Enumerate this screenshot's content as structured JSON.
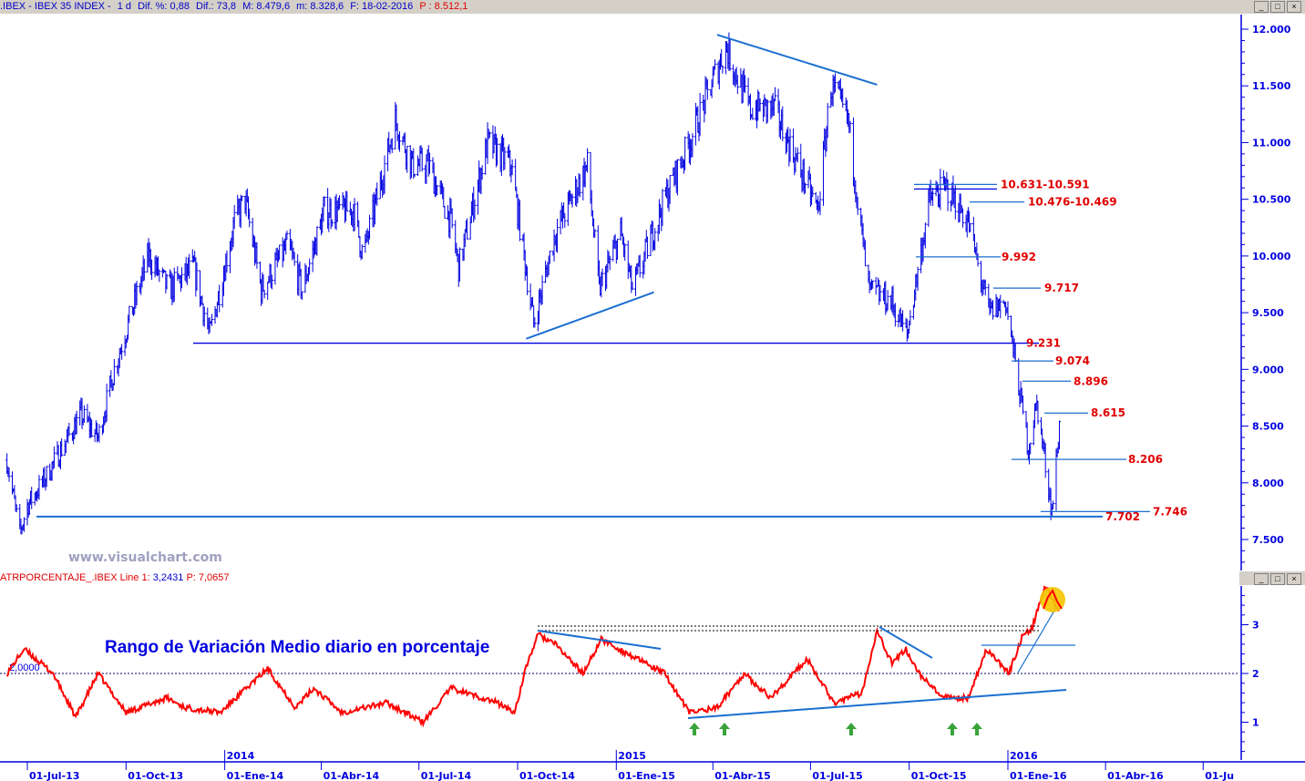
{
  "header": {
    "symbol": ".IBEX - IBEX 35 INDEX -",
    "period": "1 d",
    "dif_pct": "Dif. %: 0,88",
    "dif": "Dif.: 73,8",
    "max": "M: 8.479,6",
    "min": "m: 8.328,6",
    "date": "F: 18-02-2016",
    "price": "P : 8.512,1"
  },
  "window_buttons": {
    "minimize": "_",
    "maximize": "□",
    "close": "×"
  },
  "indicator_header": {
    "name": "ATRPORCENTAJE_.IBEX Line 1:",
    "line1_value": "3,2431",
    "price": "P: 7,0657"
  },
  "watermark": "www.visualchart.com",
  "indicator_title": "Rango de Variación Medio diario en porcentaje",
  "colors": {
    "price_bars": "#0000e0",
    "indicator_line": "#ff0000",
    "trendlines": "#1a6fd0",
    "level_labels": "#e00000",
    "axis": "#0000e0",
    "highlight_circle": "#f5c400",
    "arrows": "#3aa33a"
  },
  "chart_data": [
    {
      "type": "ohlc-bar",
      "title": ".IBEX - IBEX 35 INDEX - 1 d",
      "y_axis_position": "right",
      "ylim": [
        7250,
        12100
      ],
      "yticks": [
        "12.000",
        "11.500",
        "11.000",
        "10.500",
        "10.000",
        "9.500",
        "9.000",
        "8.500",
        "8.000",
        "7.500"
      ],
      "ytick_values": [
        12000,
        11500,
        11000,
        10500,
        10000,
        9500,
        9000,
        8500,
        8000,
        7500
      ],
      "approx_close_path": [
        [
          "2013-06-12",
          8200
        ],
        [
          "2013-06-24",
          7550
        ],
        [
          "2013-07-01",
          7800
        ],
        [
          "2013-07-15",
          8000
        ],
        [
          "2013-08-20",
          8600
        ],
        [
          "2013-09-05",
          8400
        ],
        [
          "2013-09-20",
          9000
        ],
        [
          "2013-10-22",
          10000
        ],
        [
          "2013-11-10",
          9700
        ],
        [
          "2013-12-03",
          9900
        ],
        [
          "2013-12-18",
          9300
        ],
        [
          "2014-01-10",
          10300
        ],
        [
          "2014-01-20",
          10500
        ],
        [
          "2014-02-04",
          9700
        ],
        [
          "2014-03-01",
          10100
        ],
        [
          "2014-03-14",
          9700
        ],
        [
          "2014-04-04",
          10400
        ],
        [
          "2014-05-01",
          10400
        ],
        [
          "2014-05-10",
          10000
        ],
        [
          "2014-06-09",
          11200
        ],
        [
          "2014-06-25",
          10800
        ],
        [
          "2014-07-10",
          10800
        ],
        [
          "2014-07-31",
          10300
        ],
        [
          "2014-08-07",
          9900
        ],
        [
          "2014-09-03",
          11000
        ],
        [
          "2014-09-25",
          10800
        ],
        [
          "2014-10-16",
          9400
        ],
        [
          "2014-11-05",
          10200
        ],
        [
          "2014-12-05",
          10800
        ],
        [
          "2014-12-16",
          9700
        ],
        [
          "2015-01-05",
          10200
        ],
        [
          "2015-01-16",
          9700
        ],
        [
          "2015-02-15",
          10500
        ],
        [
          "2015-03-10",
          11000
        ],
        [
          "2015-04-13",
          11850
        ],
        [
          "2015-05-05",
          11300
        ],
        [
          "2015-05-28",
          11300
        ],
        [
          "2015-06-15",
          10900
        ],
        [
          "2015-07-08",
          10400
        ],
        [
          "2015-07-20",
          11500
        ],
        [
          "2015-08-05",
          11200
        ],
        [
          "2015-08-24",
          9700
        ],
        [
          "2015-09-14",
          9600
        ],
        [
          "2015-09-29",
          9300
        ],
        [
          "2015-10-20",
          10500
        ],
        [
          "2015-11-05",
          10600
        ],
        [
          "2015-11-25",
          10300
        ],
        [
          "2015-12-14",
          9500
        ],
        [
          "2015-12-30",
          9600
        ],
        [
          "2016-01-20",
          8300
        ],
        [
          "2016-01-28",
          8700
        ],
        [
          "2016-02-11",
          7750
        ],
        [
          "2016-02-18",
          8500
        ]
      ],
      "levels": [
        {
          "label": "10.631-10.591",
          "value": 10631
        },
        {
          "label": "10.476-10.469",
          "value": 10476
        },
        {
          "label": "9.992",
          "value": 9992
        },
        {
          "label": "9.717",
          "value": 9717
        },
        {
          "label": "9.231",
          "value": 9231
        },
        {
          "label": "9.074",
          "value": 9074
        },
        {
          "label": "8.896",
          "value": 8896
        },
        {
          "label": "8.615",
          "value": 8615
        },
        {
          "label": "8.206",
          "value": 8206
        },
        {
          "label": "7.746",
          "value": 7746
        },
        {
          "label": "7.702",
          "value": 7702
        }
      ],
      "trendlines": [
        {
          "from": [
            "2015-04-05",
            11950
          ],
          "to": [
            "2015-09-01",
            11510
          ]
        },
        {
          "from": [
            "2014-10-09",
            9270
          ],
          "to": [
            "2015-02-05",
            9680
          ]
        }
      ]
    },
    {
      "type": "line",
      "title": "ATRPORCENTAJE_.IBEX",
      "ylim": [
        0.2,
        3.8
      ],
      "yticks": [
        "3",
        "2",
        "1"
      ],
      "ytick_values": [
        3,
        2,
        1
      ],
      "reference_line": {
        "label": "2,0000",
        "value": 2.0
      },
      "series": [
        {
          "name": "Line 1",
          "points": [
            [
              "2013-06-12",
              2.0
            ],
            [
              "2013-06-28",
              2.5
            ],
            [
              "2013-07-25",
              2.0
            ],
            [
              "2013-08-15",
              1.1
            ],
            [
              "2013-09-05",
              2.0
            ],
            [
              "2013-10-01",
              1.2
            ],
            [
              "2013-11-08",
              1.5
            ],
            [
              "2013-11-25",
              1.3
            ],
            [
              "2013-12-28",
              1.2
            ],
            [
              "2014-02-10",
              2.1
            ],
            [
              "2014-03-08",
              1.3
            ],
            [
              "2014-03-25",
              1.7
            ],
            [
              "2014-04-20",
              1.2
            ],
            [
              "2014-06-01",
              1.4
            ],
            [
              "2014-07-05",
              1.0
            ],
            [
              "2014-07-31",
              1.7
            ],
            [
              "2014-09-12",
              1.4
            ],
            [
              "2014-09-28",
              1.2
            ],
            [
              "2014-10-10",
              2.2
            ],
            [
              "2014-10-20",
              2.8
            ],
            [
              "2014-11-05",
              2.6
            ],
            [
              "2014-12-01",
              2.0
            ],
            [
              "2014-12-18",
              2.7
            ],
            [
              "2015-01-20",
              2.3
            ],
            [
              "2015-02-15",
              2.0
            ],
            [
              "2015-03-10",
              1.2
            ],
            [
              "2015-04-05",
              1.3
            ],
            [
              "2015-04-30",
              2.0
            ],
            [
              "2015-05-25",
              1.5
            ],
            [
              "2015-06-28",
              2.3
            ],
            [
              "2015-07-23",
              1.4
            ],
            [
              "2015-08-18",
              1.6
            ],
            [
              "2015-09-01",
              2.9
            ],
            [
              "2015-09-15",
              2.2
            ],
            [
              "2015-09-28",
              2.5
            ],
            [
              "2015-10-10",
              2.0
            ],
            [
              "2015-11-01",
              1.5
            ],
            [
              "2015-11-25",
              1.5
            ],
            [
              "2015-12-12",
              2.5
            ],
            [
              "2016-01-02",
              2.0
            ],
            [
              "2016-01-15",
              2.8
            ],
            [
              "2016-01-23",
              2.9
            ],
            [
              "2016-02-05",
              3.8
            ],
            [
              "2016-02-18",
              3.24
            ]
          ]
        }
      ]
    }
  ],
  "x_axis": {
    "ticks": [
      "01-Jul-13",
      "01-Oct-13",
      "01-Ene-14",
      "01-Abr-14",
      "01-Jul-14",
      "01-Oct-14",
      "01-Ene-15",
      "01-Abr-15",
      "01-Jul-15",
      "01-Oct-15",
      "01-Ene-16",
      "01-Abr-16",
      "01-Ju"
    ],
    "tick_dates": [
      "2013-07-01",
      "2013-10-01",
      "2014-01-01",
      "2014-04-01",
      "2014-07-01",
      "2014-10-01",
      "2015-01-01",
      "2015-04-01",
      "2015-07-01",
      "2015-10-01",
      "2016-01-01",
      "2016-04-01",
      "2016-07-01"
    ],
    "years": [
      {
        "label": "2014",
        "date": "2014-01-01"
      },
      {
        "label": "2015",
        "date": "2015-01-01"
      },
      {
        "label": "2016",
        "date": "2016-01-01"
      }
    ]
  }
}
